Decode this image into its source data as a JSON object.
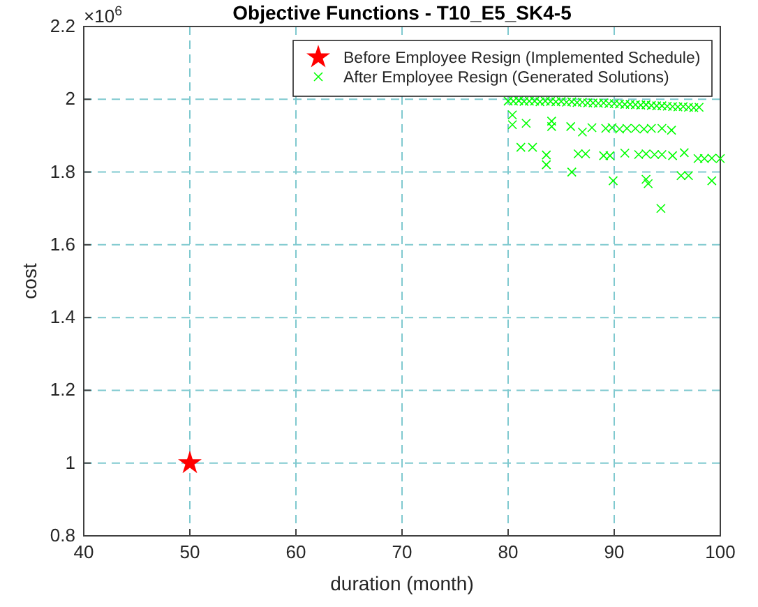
{
  "chart_data": {
    "type": "scatter",
    "title": "Objective Functions - T10_E5_SK4-5",
    "xlabel": "duration (month)",
    "ylabel": "cost",
    "annotations": [
      "×10$^{6}$"
    ],
    "xlim": [
      40,
      100
    ],
    "xticks": [
      40,
      50,
      60,
      70,
      80,
      90,
      100
    ],
    "ylim": [
      0.8,
      2.2
    ],
    "yticks": [
      0.8,
      1,
      1.2,
      1.4,
      1.6,
      1.8,
      2,
      2.2
    ],
    "grid": true,
    "legend": "top right",
    "line_style": "dashed",
    "series": [
      {
        "name": "Before Employee Resign (Implemented Schedule)",
        "color": "#ff0000",
        "marker": "star",
        "x": [
          50
        ],
        "values": [
          1
        ]
      },
      {
        "name": "After Employee Resign (Generated Solutions)",
        "color": "#00ff00",
        "marker": "cross",
        "x": [
          80,
          80.5,
          81,
          81.5,
          82,
          82.5,
          83,
          83.5,
          84,
          84.5,
          85,
          85.5,
          86,
          86.5,
          87,
          87.5,
          88,
          88.5,
          89,
          89.5,
          90,
          90.5,
          91,
          91.5,
          92,
          92.5,
          93,
          93.5,
          94,
          94.5,
          95,
          95.5,
          96,
          96.5,
          97,
          97.5,
          98,
          80.4,
          80.4,
          81.7,
          84.1,
          84.1,
          85.9,
          87,
          87.9,
          89.2,
          89.8,
          90.5,
          91.2,
          92,
          92.8,
          93.5,
          94.5,
          95.4,
          81.2,
          82.3,
          83.6,
          83.6,
          86,
          86.6,
          87.3,
          89,
          89.6,
          91,
          92.3,
          93,
          93.8,
          94.5,
          95.5,
          96.6,
          97.9,
          98.5,
          99.2,
          100,
          89.9,
          93,
          93.2,
          96.3,
          97,
          99.2,
          94.4
        ],
        "values": [
          1.995,
          1.995,
          1.996,
          1.994,
          1.995,
          1.995,
          1.993,
          1.995,
          1.994,
          1.993,
          1.994,
          1.992,
          1.993,
          1.991,
          1.992,
          1.99,
          1.99,
          1.989,
          1.99,
          1.988,
          1.988,
          1.987,
          1.986,
          1.986,
          1.985,
          1.984,
          1.985,
          1.983,
          1.982,
          1.982,
          1.981,
          1.98,
          1.979,
          1.98,
          1.978,
          1.977,
          1.978,
          1.957,
          1.93,
          1.934,
          1.94,
          1.925,
          1.925,
          1.91,
          1.922,
          1.92,
          1.922,
          1.918,
          1.92,
          1.92,
          1.918,
          1.92,
          1.92,
          1.915,
          1.868,
          1.868,
          1.847,
          1.82,
          1.8,
          1.85,
          1.85,
          1.845,
          1.845,
          1.852,
          1.848,
          1.85,
          1.848,
          1.848,
          1.845,
          1.853,
          1.837,
          1.837,
          1.838,
          1.837,
          1.776,
          1.78,
          1.768,
          1.79,
          1.79,
          1.776,
          1.7
        ]
      }
    ]
  }
}
